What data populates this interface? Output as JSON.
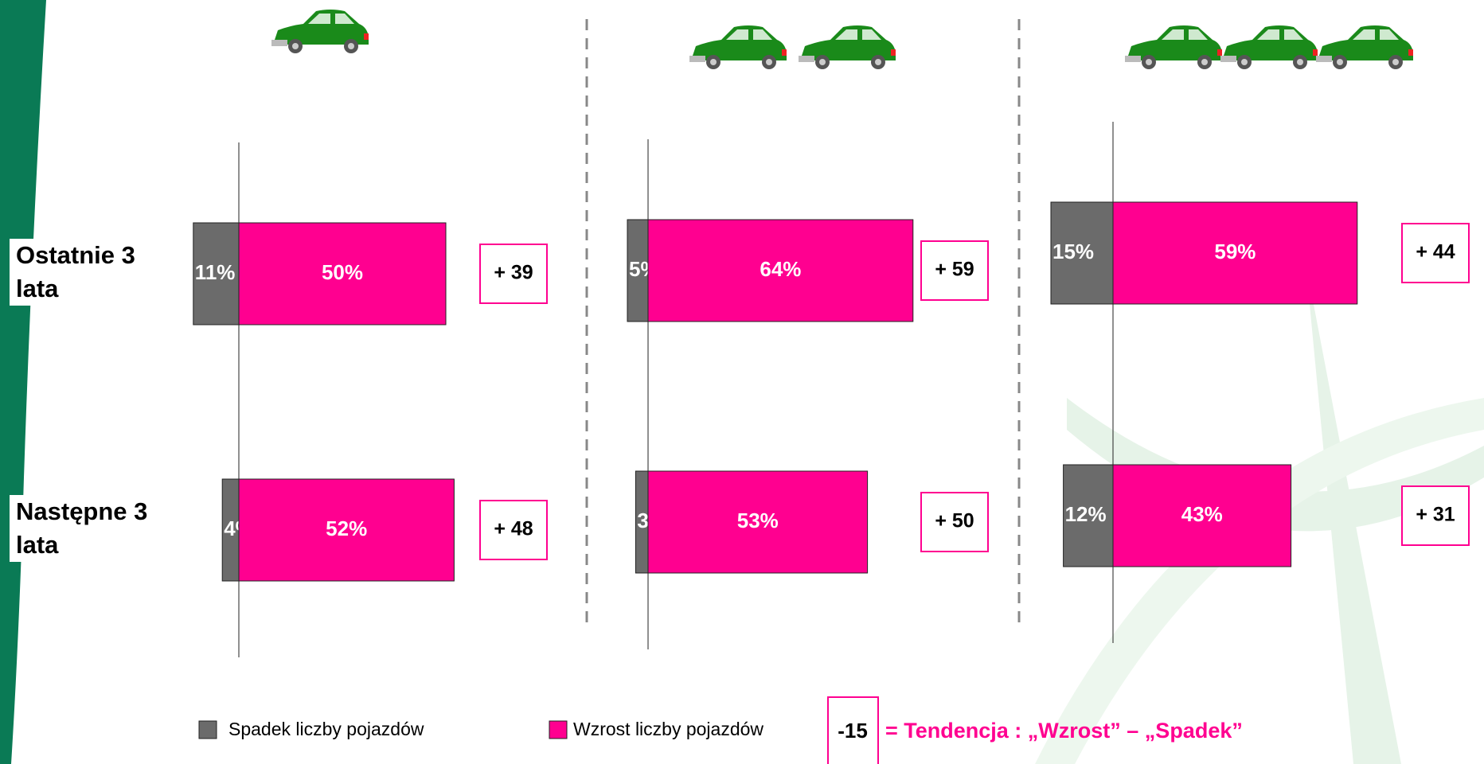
{
  "chart_data": [
    {
      "type": "bar",
      "categories": [
        "Ostatnie 3 lata",
        "Następne 3 lata"
      ],
      "xlim": [
        -15,
        70
      ],
      "series": [
        {
          "color": "#6b6b6b",
          "values": [
            -11,
            -4
          ],
          "value_labels": [
            "11%",
            "4%"
          ]
        },
        {
          "color": "#ff0090",
          "values": [
            50,
            52
          ],
          "value_labels": [
            "50%",
            "52%"
          ]
        }
      ],
      "net_values": [
        39,
        48
      ],
      "net_labels": [
        "+ 39",
        "+ 48"
      ]
    },
    {
      "type": "bar",
      "xlim": [
        -15,
        70
      ],
      "series": [
        {
          "color": "#6b6b6b",
          "values": [
            -5,
            -3
          ],
          "value_labels": [
            "5%",
            "3%"
          ]
        },
        {
          "color": "#ff0090",
          "values": [
            64,
            53
          ],
          "value_labels": [
            "64%",
            "53%"
          ]
        }
      ],
      "net_values": [
        59,
        50
      ],
      "net_labels": [
        "+ 59",
        "+ 50"
      ]
    },
    {
      "type": "bar",
      "xlim": [
        -15,
        70
      ],
      "series": [
        {
          "color": "#6b6b6b",
          "values": [
            -15,
            -12
          ],
          "value_labels": [
            "15%",
            "12%"
          ]
        },
        {
          "color": "#ff0090",
          "values": [
            59,
            43
          ],
          "value_labels": [
            "59%",
            "43%"
          ]
        }
      ],
      "net_values": [
        44,
        31
      ],
      "net_labels": [
        "+ 44",
        "+ 31"
      ]
    }
  ],
  "legend": [
    "Spadek liczby pojazdów",
    "Wzrost liczby pojazdów"
  ],
  "example_value": -15,
  "example_text": "= Tendencja : „Wzrost” – „Spadek”"
}
